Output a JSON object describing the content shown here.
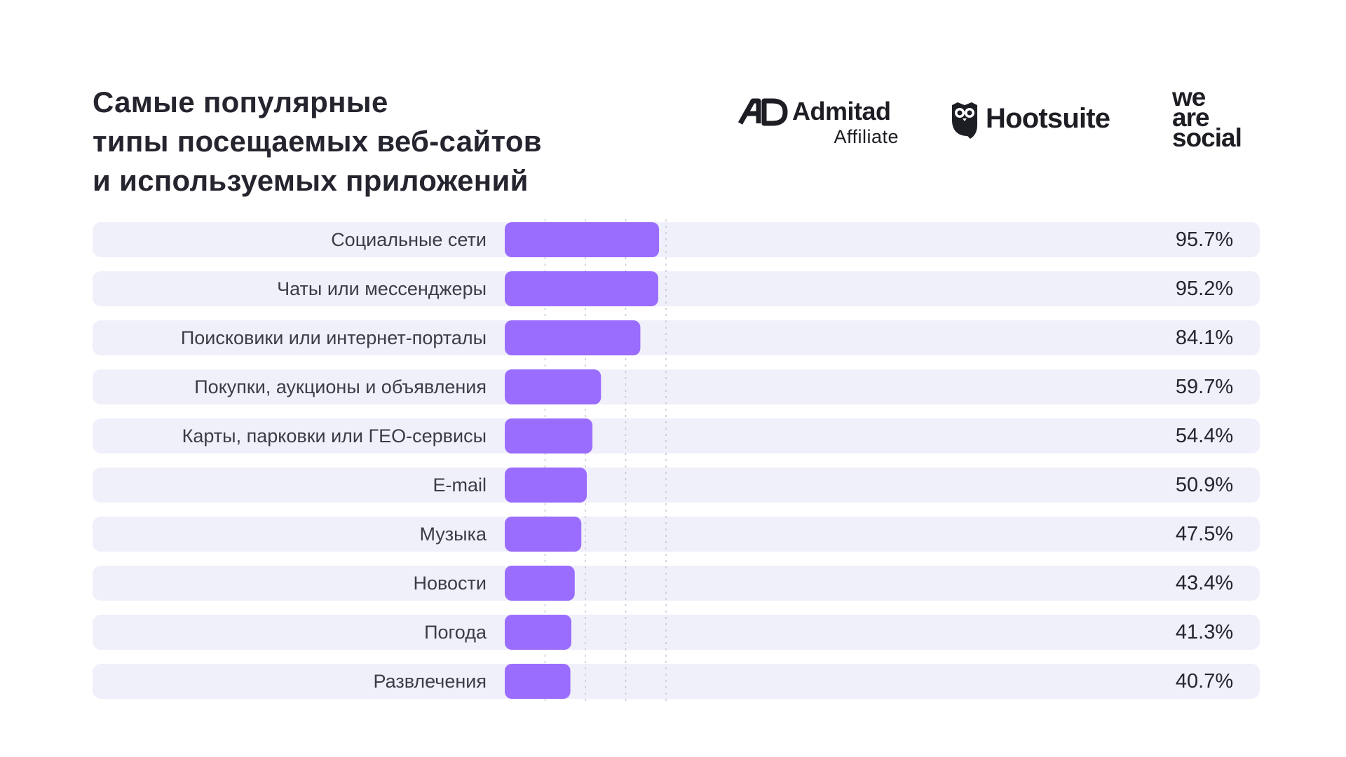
{
  "title_lines": [
    "Самые популярные",
    "типы посещаемых веб-сайтов",
    "и используемых приложений"
  ],
  "logos": {
    "admitad": {
      "name": "Admitad",
      "sub": "Affiliate",
      "mark": "AD"
    },
    "hootsuite": {
      "name": "Hootsuite"
    },
    "wearesocial": {
      "line1": "we",
      "line2": "are",
      "line3": "social"
    }
  },
  "colors": {
    "bar": "#9b6dff",
    "row_background": "#f0f0fb",
    "gridline": "#c8c8d4",
    "text": "#25252f"
  },
  "chart_data": {
    "type": "bar",
    "orientation": "horizontal",
    "categories": [
      "Социальные сети",
      "Чаты или мессенджеры",
      "Поисковики или интернет-порталы",
      "Покупки, аукционы и объявления",
      "Карты, парковки или ГЕО-сервисы",
      "E-mail",
      "Музыка",
      "Новости",
      "Погода",
      "Развлечения"
    ],
    "values": [
      95.7,
      95.2,
      84.1,
      59.7,
      54.4,
      50.9,
      47.5,
      43.4,
      41.3,
      40.7
    ],
    "value_labels": [
      "95.7%",
      "95.2%",
      "84.1%",
      "59.7%",
      "54.4%",
      "50.9%",
      "47.5%",
      "43.4%",
      "41.3%",
      "40.7%"
    ],
    "xlim": [
      0,
      100
    ],
    "grid": true,
    "gridlines_at": [
      25,
      50,
      75,
      100
    ],
    "title": "Самые популярные типы посещаемых веб-сайтов и используемых приложений"
  }
}
